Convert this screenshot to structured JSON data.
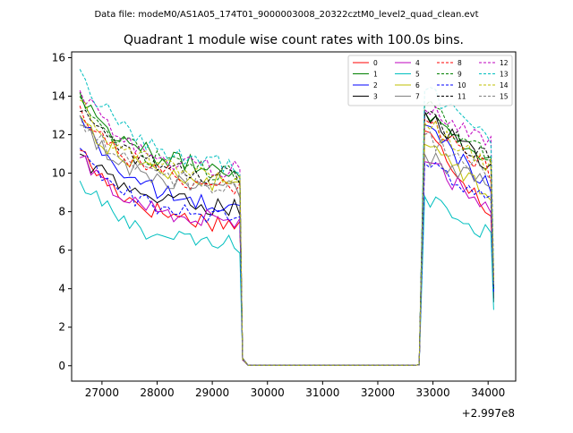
{
  "header": {
    "file_label": "Data file: modeM0/AS1A05_174T01_9000003008_20322cztM0_level2_quad_clean.evt"
  },
  "chart_data": {
    "type": "line",
    "title": "Quadrant 1 module wise count rates with 100.0s bins.",
    "xlabel": "",
    "ylabel": "",
    "x_offset_label": "+2.997e8",
    "xlim": [
      26450,
      34500
    ],
    "ylim": [
      -0.8,
      16.3
    ],
    "x_ticks": [
      27000,
      28000,
      29000,
      30000,
      31000,
      32000,
      33000,
      34000
    ],
    "y_ticks": [
      0,
      2,
      4,
      6,
      8,
      10,
      12,
      14,
      16
    ],
    "legend_position": "top-right",
    "segment1": {
      "x_start": 26600,
      "x_end": 29450,
      "step": 100
    },
    "gap": {
      "x": [
        29550,
        29650,
        32650,
        32750
      ]
    },
    "segment2": {
      "x_start": 32850,
      "x_end": 34050,
      "step": 100
    },
    "end_x": 34100,
    "series": [
      {
        "name": "0",
        "color": "#ff0000",
        "style": "solid",
        "start": 11.2,
        "mid": 7.2,
        "s2_start": 12.2,
        "s2_end": 8.0,
        "end": 3.5
      },
      {
        "name": "1",
        "color": "#008000",
        "style": "solid",
        "start": 14.2,
        "mid": 10.0,
        "s2_start": 13.2,
        "s2_end": 10.6,
        "end": 4.0
      },
      {
        "name": "2",
        "color": "#0000ff",
        "style": "solid",
        "start": 13.0,
        "mid": 8.0,
        "s2_start": 12.5,
        "s2_end": 9.3,
        "end": 4.2
      },
      {
        "name": "3",
        "color": "#000000",
        "style": "solid",
        "start": 11.0,
        "mid": 8.1,
        "s2_start": 13.2,
        "s2_end": 10.3,
        "end": 3.3
      },
      {
        "name": "4",
        "color": "#bf00bf",
        "style": "solid",
        "start": 10.8,
        "mid": 7.4,
        "s2_start": 10.6,
        "s2_end": 8.3,
        "end": 4.4
      },
      {
        "name": "5",
        "color": "#00bfbf",
        "style": "solid",
        "start": 9.6,
        "mid": 6.1,
        "s2_start": 8.8,
        "s2_end": 6.8,
        "end": 2.9
      },
      {
        "name": "6",
        "color": "#bfbf00",
        "style": "solid",
        "start": 13.0,
        "mid": 9.3,
        "s2_start": 11.5,
        "s2_end": 9.0,
        "end": 4.3
      },
      {
        "name": "7",
        "color": "#808080",
        "style": "solid",
        "start": 12.5,
        "mid": 9.0,
        "s2_start": 11.0,
        "s2_end": 9.2,
        "end": 4.2
      },
      {
        "name": "8",
        "color": "#ff0000",
        "style": "dashed",
        "start": 13.5,
        "mid": 9.2,
        "s2_start": 12.8,
        "s2_end": 10.0,
        "end": 4.6
      },
      {
        "name": "9",
        "color": "#008000",
        "style": "dashed",
        "start": 14.0,
        "mid": 9.8,
        "s2_start": 13.5,
        "s2_end": 10.7,
        "end": 4.5
      },
      {
        "name": "10",
        "color": "#0000ff",
        "style": "dashed",
        "start": 11.3,
        "mid": 7.5,
        "s2_start": 10.5,
        "s2_end": 8.4,
        "end": 3.8
      },
      {
        "name": "11",
        "color": "#000000",
        "style": "dashed",
        "start": 13.2,
        "mid": 9.7,
        "s2_start": 13.0,
        "s2_end": 10.6,
        "end": 4.1
      },
      {
        "name": "12",
        "color": "#bf00bf",
        "style": "dashed",
        "start": 14.3,
        "mid": 10.0,
        "s2_start": 13.3,
        "s2_end": 11.5,
        "end": 4.7
      },
      {
        "name": "13",
        "color": "#00bfbf",
        "style": "dashed",
        "start": 15.4,
        "mid": 10.2,
        "s2_start": 14.3,
        "s2_end": 11.7,
        "end": 4.9
      },
      {
        "name": "14",
        "color": "#bfbf00",
        "style": "dashed",
        "start": 13.8,
        "mid": 9.6,
        "s2_start": 12.6,
        "s2_end": 10.4,
        "end": 4.4
      },
      {
        "name": "15",
        "color": "#808080",
        "style": "dashed",
        "start": 13.0,
        "mid": 9.1,
        "s2_start": 12.0,
        "s2_end": 9.9,
        "end": 4.2
      }
    ]
  }
}
